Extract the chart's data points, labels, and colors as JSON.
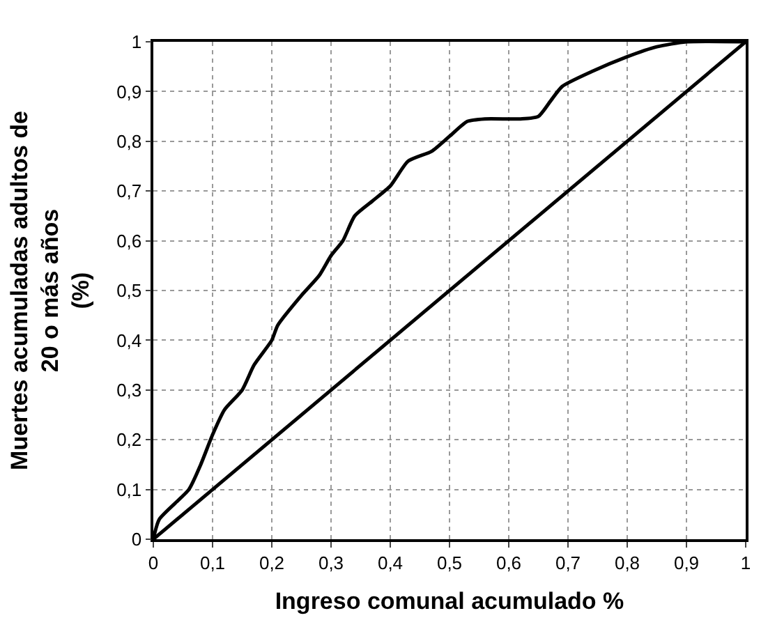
{
  "chart_data": {
    "type": "line",
    "xlabel": "Ingreso comunal acumulado %",
    "ylabel": "Muertes acumuladas adultos de\n20 o más años\n(%)",
    "xlim": [
      0,
      1
    ],
    "ylim": [
      0,
      1
    ],
    "xticks": [
      0,
      {
        "value": 0.1,
        "label": "0,1"
      },
      {
        "value": 0.2,
        "label": "0,2"
      },
      {
        "value": 0.3,
        "label": "0,3"
      },
      {
        "value": 0.4,
        "label": "0,4"
      },
      {
        "value": 0.5,
        "label": "0,5"
      },
      {
        "value": 0.6,
        "label": "0,6"
      },
      {
        "value": 0.7,
        "label": "0,7"
      },
      {
        "value": 0.8,
        "label": "0,8"
      },
      {
        "value": 0.9,
        "label": "0,9"
      },
      1
    ],
    "yticks": [
      0,
      {
        "value": 0.1,
        "label": "0,1"
      },
      {
        "value": 0.2,
        "label": "0,2"
      },
      {
        "value": 0.3,
        "label": "0,3"
      },
      {
        "value": 0.4,
        "label": "0,4"
      },
      {
        "value": 0.5,
        "label": "0,5"
      },
      {
        "value": 0.6,
        "label": "0,6"
      },
      {
        "value": 0.7,
        "label": "0,7"
      },
      {
        "value": 0.8,
        "label": "0,8"
      },
      {
        "value": 0.9,
        "label": "0,9"
      },
      1
    ],
    "grid": true,
    "marker": "none",
    "line_style": "solid",
    "series": [
      {
        "color": "#000000",
        "x": [
          0,
          0.01,
          0.06,
          0.08,
          0.1,
          0.12,
          0.15,
          0.17,
          0.2,
          0.21,
          0.25,
          0.28,
          0.3,
          0.32,
          0.34,
          0.37,
          0.4,
          0.43,
          0.47,
          0.5,
          0.53,
          0.56,
          0.62,
          0.65,
          0.67,
          0.69,
          0.74,
          0.8,
          0.85,
          0.9,
          1
        ],
        "values": [
          0,
          0.04,
          0.1,
          0.15,
          0.21,
          0.26,
          0.3,
          0.35,
          0.4,
          0.43,
          0.49,
          0.53,
          0.57,
          0.6,
          0.65,
          0.68,
          0.71,
          0.76,
          0.78,
          0.81,
          0.84,
          0.845,
          0.845,
          0.85,
          0.88,
          0.91,
          0.94,
          0.97,
          0.99,
          1,
          1
        ]
      },
      {
        "color": "#000000",
        "x": [
          0,
          1
        ],
        "values": [
          0,
          1
        ]
      }
    ]
  }
}
